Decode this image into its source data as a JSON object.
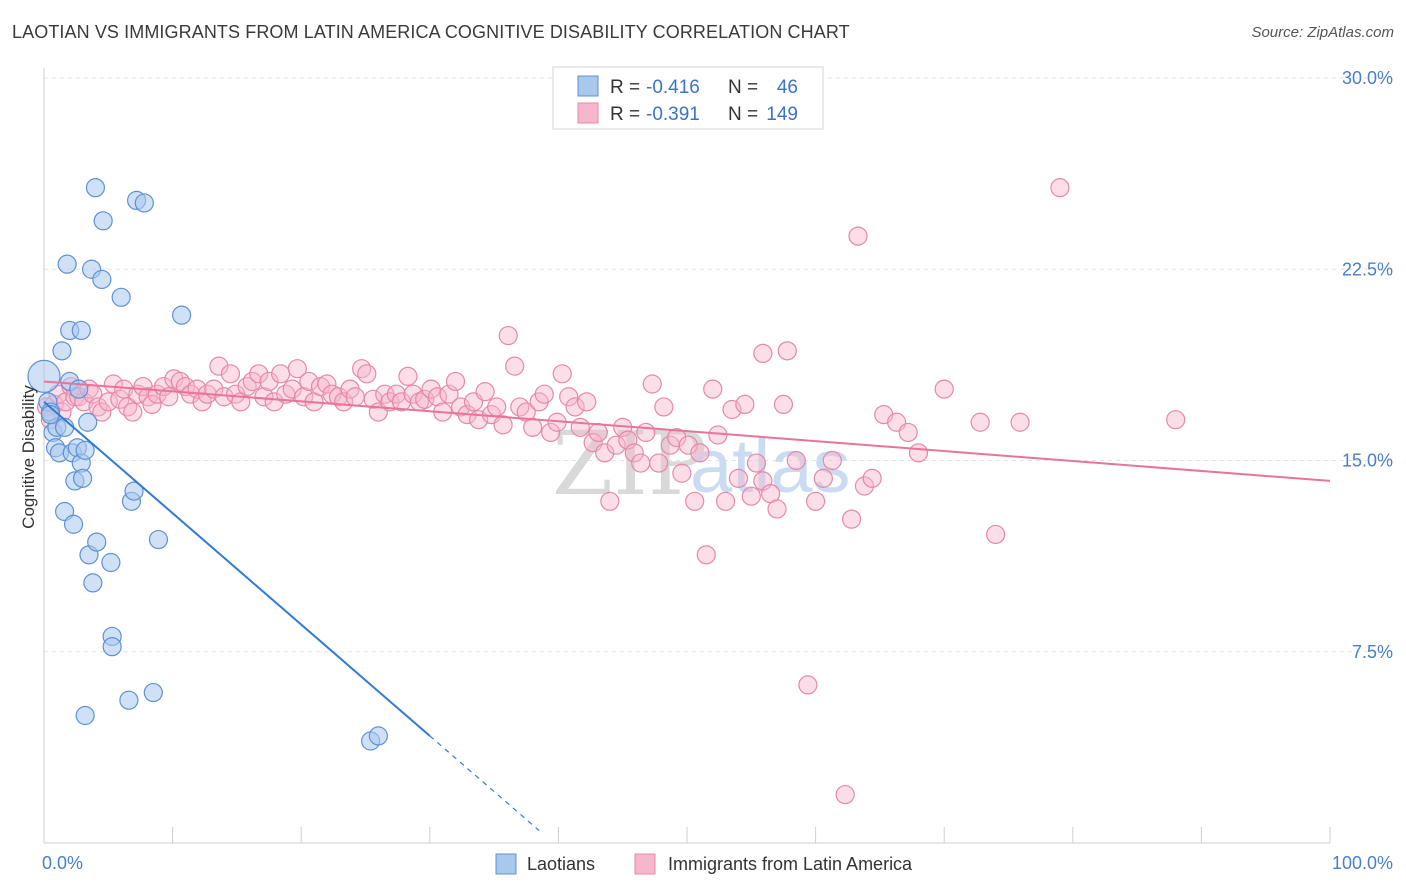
{
  "title": "LAOTIAN VS IMMIGRANTS FROM LATIN AMERICA COGNITIVE DISABILITY CORRELATION CHART",
  "source": "Source: ZipAtlas.com",
  "watermark": {
    "zip": "ZIP",
    "atlas": "atlas"
  },
  "colors": {
    "blue_fill": "#a9c8ee",
    "blue_stroke": "#5d92d6",
    "blue_line": "#2f7ad6",
    "pink_fill": "#f6b6cb",
    "pink_stroke": "#e888a8",
    "pink_line": "#e8739b",
    "tick_text": "#4a7ec9",
    "grid": "#e3e3e3"
  },
  "legend": {
    "rows": [
      {
        "r_label": "R =",
        "r_value": "-0.416",
        "n_label": "N =",
        "n_value": "46"
      },
      {
        "r_label": "R =",
        "r_value": "-0.391",
        "n_label": "N =",
        "n_value": "149"
      }
    ]
  },
  "chart_data": {
    "type": "scatter",
    "title": "LAOTIAN VS IMMIGRANTS FROM LATIN AMERICA COGNITIVE DISABILITY CORRELATION CHART",
    "xlabel": "",
    "ylabel": "Cognitive Disability",
    "xlim": [
      0,
      100
    ],
    "ylim": [
      0,
      31.0
    ],
    "x_tick_labels": [
      "0.0%",
      "100.0%"
    ],
    "y_ticks": [
      7.5,
      15.0,
      22.5,
      30.0
    ],
    "y_tick_labels": [
      "7.5%",
      "15.0%",
      "22.5%",
      "30.0%"
    ],
    "grid": true,
    "legend_position": "top-center",
    "series": [
      {
        "name": "Laotians",
        "R": -0.416,
        "N": 46,
        "trend": {
          "x_start": 0,
          "y_start": 17.3,
          "x_end": 30.0,
          "y_end": 4.2,
          "dashed_to_x": 38.5
        },
        "points": [
          [
            0.0,
            18.3
          ],
          [
            0.3,
            17.3
          ],
          [
            0.5,
            16.9
          ],
          [
            0.7,
            16.1
          ],
          [
            0.9,
            15.5
          ],
          [
            1.0,
            16.3
          ],
          [
            1.2,
            15.3
          ],
          [
            1.4,
            19.3
          ],
          [
            1.6,
            13.0
          ],
          [
            1.6,
            16.3
          ],
          [
            1.8,
            22.7
          ],
          [
            2.0,
            18.1
          ],
          [
            2.0,
            20.1
          ],
          [
            2.2,
            15.3
          ],
          [
            2.3,
            12.5
          ],
          [
            2.4,
            14.2
          ],
          [
            2.6,
            15.5
          ],
          [
            2.7,
            17.8
          ],
          [
            2.9,
            14.9
          ],
          [
            3.0,
            14.3
          ],
          [
            2.9,
            20.1
          ],
          [
            3.2,
            15.4
          ],
          [
            3.4,
            16.5
          ],
          [
            3.2,
            5.0
          ],
          [
            3.5,
            11.3
          ],
          [
            3.7,
            22.5
          ],
          [
            3.8,
            10.2
          ],
          [
            4.0,
            25.7
          ],
          [
            4.1,
            11.8
          ],
          [
            4.5,
            22.1
          ],
          [
            4.6,
            24.4
          ],
          [
            5.2,
            11.0
          ],
          [
            5.3,
            8.1
          ],
          [
            5.3,
            7.7
          ],
          [
            6.0,
            21.4
          ],
          [
            6.6,
            5.6
          ],
          [
            6.8,
            13.4
          ],
          [
            7.0,
            13.8
          ],
          [
            7.2,
            25.2
          ],
          [
            7.8,
            25.1
          ],
          [
            8.5,
            5.9
          ],
          [
            8.9,
            11.9
          ],
          [
            10.7,
            20.7
          ],
          [
            25.4,
            4.0
          ],
          [
            26.0,
            4.2
          ],
          [
            0.5,
            16.8
          ]
        ]
      },
      {
        "name": "Immigrants from Latin America",
        "R": -0.391,
        "N": 149,
        "trend": {
          "x_start": 0,
          "y_start": 18.1,
          "x_end": 100,
          "y_end": 14.2
        },
        "points": [
          [
            0.2,
            17.1
          ],
          [
            0.5,
            16.6
          ],
          [
            0.8,
            17.2
          ],
          [
            1.1,
            17.6
          ],
          [
            1.4,
            16.9
          ],
          [
            1.7,
            17.3
          ],
          [
            2.1,
            17.9
          ],
          [
            2.4,
            17.5
          ],
          [
            2.7,
            17.5
          ],
          [
            3.1,
            17.3
          ],
          [
            3.5,
            17.8
          ],
          [
            3.8,
            17.6
          ],
          [
            4.2,
            17.1
          ],
          [
            4.5,
            16.9
          ],
          [
            5.0,
            17.3
          ],
          [
            5.4,
            18.0
          ],
          [
            5.9,
            17.4
          ],
          [
            6.2,
            17.8
          ],
          [
            6.5,
            17.1
          ],
          [
            6.9,
            16.9
          ],
          [
            7.3,
            17.6
          ],
          [
            7.7,
            17.9
          ],
          [
            8.1,
            17.5
          ],
          [
            8.4,
            17.2
          ],
          [
            8.8,
            17.6
          ],
          [
            9.3,
            17.9
          ],
          [
            9.7,
            17.5
          ],
          [
            10.1,
            18.2
          ],
          [
            10.6,
            18.1
          ],
          [
            11.0,
            17.9
          ],
          [
            11.4,
            17.6
          ],
          [
            11.9,
            17.8
          ],
          [
            12.3,
            17.3
          ],
          [
            12.7,
            17.6
          ],
          [
            13.2,
            17.8
          ],
          [
            13.6,
            18.7
          ],
          [
            14.0,
            17.5
          ],
          [
            14.5,
            18.4
          ],
          [
            14.9,
            17.6
          ],
          [
            15.3,
            17.3
          ],
          [
            15.8,
            17.9
          ],
          [
            16.2,
            18.1
          ],
          [
            16.7,
            18.4
          ],
          [
            17.1,
            17.5
          ],
          [
            17.5,
            18.1
          ],
          [
            17.9,
            17.3
          ],
          [
            18.4,
            18.4
          ],
          [
            18.8,
            17.6
          ],
          [
            19.3,
            17.8
          ],
          [
            19.7,
            18.6
          ],
          [
            20.2,
            17.5
          ],
          [
            20.6,
            18.1
          ],
          [
            21.0,
            17.3
          ],
          [
            21.5,
            17.9
          ],
          [
            22.0,
            18.0
          ],
          [
            22.4,
            17.6
          ],
          [
            22.9,
            17.5
          ],
          [
            23.3,
            17.3
          ],
          [
            23.8,
            17.8
          ],
          [
            24.2,
            17.5
          ],
          [
            24.7,
            18.6
          ],
          [
            25.1,
            18.4
          ],
          [
            25.6,
            17.4
          ],
          [
            26.0,
            16.9
          ],
          [
            26.5,
            17.6
          ],
          [
            26.9,
            17.3
          ],
          [
            27.4,
            17.6
          ],
          [
            27.8,
            17.3
          ],
          [
            28.3,
            18.3
          ],
          [
            28.7,
            17.6
          ],
          [
            29.2,
            17.3
          ],
          [
            29.6,
            17.4
          ],
          [
            30.1,
            17.8
          ],
          [
            30.6,
            17.5
          ],
          [
            31.0,
            16.9
          ],
          [
            31.5,
            17.6
          ],
          [
            32.0,
            18.1
          ],
          [
            32.4,
            17.1
          ],
          [
            32.9,
            16.8
          ],
          [
            33.4,
            17.3
          ],
          [
            33.8,
            16.6
          ],
          [
            34.3,
            17.7
          ],
          [
            34.8,
            16.8
          ],
          [
            35.2,
            17.1
          ],
          [
            35.7,
            16.4
          ],
          [
            36.1,
            19.9
          ],
          [
            36.6,
            18.7
          ],
          [
            37.0,
            17.1
          ],
          [
            37.5,
            16.9
          ],
          [
            38.0,
            16.3
          ],
          [
            38.5,
            17.3
          ],
          [
            38.9,
            17.6
          ],
          [
            39.4,
            16.1
          ],
          [
            39.9,
            16.5
          ],
          [
            40.3,
            18.4
          ],
          [
            40.8,
            17.5
          ],
          [
            41.3,
            17.1
          ],
          [
            41.7,
            16.3
          ],
          [
            42.2,
            17.3
          ],
          [
            42.7,
            15.7
          ],
          [
            43.1,
            16.1
          ],
          [
            43.6,
            15.3
          ],
          [
            44.0,
            13.4
          ],
          [
            44.5,
            15.6
          ],
          [
            45.0,
            16.3
          ],
          [
            45.4,
            15.8
          ],
          [
            45.9,
            15.3
          ],
          [
            46.4,
            14.9
          ],
          [
            46.8,
            16.1
          ],
          [
            47.3,
            18.0
          ],
          [
            47.8,
            14.9
          ],
          [
            48.2,
            17.1
          ],
          [
            48.7,
            15.6
          ],
          [
            49.2,
            15.9
          ],
          [
            49.6,
            14.5
          ],
          [
            50.1,
            15.6
          ],
          [
            50.6,
            13.4
          ],
          [
            51.0,
            15.3
          ],
          [
            51.5,
            11.3
          ],
          [
            52.0,
            17.8
          ],
          [
            52.4,
            16.0
          ],
          [
            53.0,
            13.4
          ],
          [
            53.5,
            17.0
          ],
          [
            54.0,
            14.3
          ],
          [
            54.5,
            17.2
          ],
          [
            55.0,
            13.6
          ],
          [
            55.4,
            14.9
          ],
          [
            55.9,
            14.2
          ],
          [
            56.5,
            13.7
          ],
          [
            57.0,
            13.1
          ],
          [
            57.5,
            17.2
          ],
          [
            58.5,
            15.0
          ],
          [
            59.4,
            6.2
          ],
          [
            60.0,
            13.4
          ],
          [
            60.6,
            14.3
          ],
          [
            61.3,
            15.0
          ],
          [
            62.3,
            1.9
          ],
          [
            62.8,
            12.7
          ],
          [
            63.8,
            14.0
          ],
          [
            64.4,
            14.3
          ],
          [
            65.3,
            16.8
          ],
          [
            66.3,
            16.5
          ],
          [
            67.2,
            16.1
          ],
          [
            68.0,
            15.3
          ],
          [
            70.0,
            17.8
          ],
          [
            72.8,
            16.5
          ],
          [
            74.0,
            12.1
          ],
          [
            75.9,
            16.5
          ],
          [
            57.8,
            19.3
          ],
          [
            55.9,
            19.2
          ]
        ]
      }
    ],
    "pink_outliers": [
      [
        79.0,
        25.7
      ],
      [
        63.3,
        23.8
      ],
      [
        88.0,
        16.6
      ]
    ]
  },
  "bottom_legend": {
    "items": [
      {
        "label": "Laotians"
      },
      {
        "label": "Immigrants from Latin America"
      }
    ]
  },
  "axis": {
    "x_min_label": "0.0%",
    "x_max_label": "100.0%"
  }
}
